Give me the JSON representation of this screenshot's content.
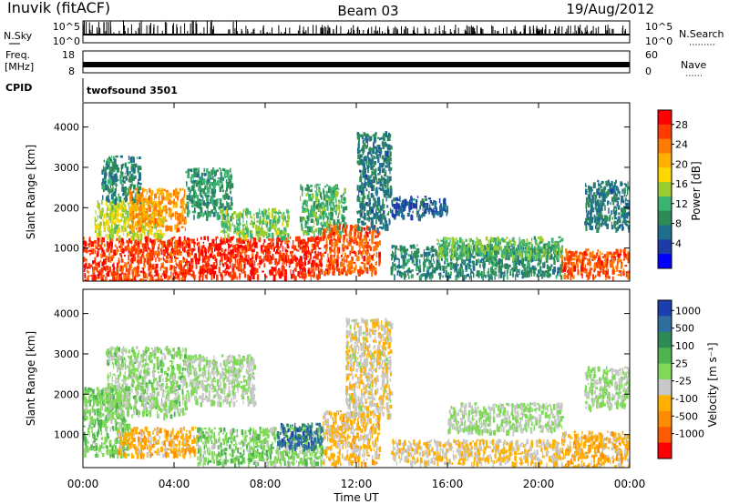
{
  "header": {
    "station": "Inuvik (fitACF)",
    "beam": "Beam 03",
    "date": "19/Aug/2012"
  },
  "top_panels": {
    "nsky_label": "N.Sky",
    "nsky_ticks": [
      "10^5",
      "10^0"
    ],
    "nsearch_label": "N.Search",
    "nsearch_ticks": [
      "10^5",
      "10^0"
    ],
    "freq_label_1": "Freq.",
    "freq_label_2": "[MHz]",
    "freq_ticks": [
      "18",
      "8"
    ],
    "nave_label": "Nave",
    "nave_ticks": [
      "60",
      "0"
    ],
    "cpid_label": "CPID",
    "cpid_value": "twofsound 3501"
  },
  "axes": {
    "ylabel": "Slant Range [km]",
    "yticks": [
      "4000",
      "3000",
      "2000",
      "1000"
    ],
    "xlabel": "Time UT",
    "xticks": [
      "00:00",
      "04:00",
      "08:00",
      "12:00",
      "16:00",
      "20:00",
      "00:00"
    ]
  },
  "colorbars": {
    "power": {
      "label": "Power [dB]",
      "ticks": [
        "28",
        "24",
        "20",
        "16",
        "12",
        "8",
        "4"
      ],
      "colors": [
        "#ff0000",
        "#ff3b00",
        "#ff7a00",
        "#ffb000",
        "#ffd700",
        "#9acd32",
        "#3cb371",
        "#2e8b57",
        "#1f6e8c",
        "#1e3ca8",
        "#0000ff"
      ]
    },
    "velocity": {
      "label": "Velocity [m s⁻¹]",
      "ticks": [
        "1000",
        "500",
        "100",
        "25",
        "-25",
        "-100",
        "-500",
        "-1000"
      ],
      "colors": [
        "#1c3fb0",
        "#2e6fa0",
        "#2e8b57",
        "#4fb34f",
        "#7ed957",
        "#c8c8c8",
        "#ffb000",
        "#ff8c00",
        "#ff5a00",
        "#ff0000"
      ]
    }
  },
  "chart_data": [
    {
      "type": "heatmap",
      "name": "power",
      "title": "",
      "xlabel": "Time UT",
      "ylabel": "Slant Range [km]",
      "xlim": [
        0,
        24
      ],
      "ylim": [
        180,
        4600
      ],
      "colorbar_label": "Power [dB]",
      "colorbar_range": [
        0,
        30
      ],
      "blobs": [
        {
          "t0": 0.0,
          "t1": 4.5,
          "r0": 180,
          "r1": 1300,
          "v": 26
        },
        {
          "t0": 0.5,
          "t1": 3.5,
          "r0": 1300,
          "r1": 2200,
          "v": 16
        },
        {
          "t0": 0.8,
          "t1": 2.5,
          "r0": 2200,
          "r1": 3300,
          "v": 9
        },
        {
          "t0": 2.0,
          "t1": 4.5,
          "r0": 1500,
          "r1": 2500,
          "v": 22
        },
        {
          "t0": 4.5,
          "t1": 6.5,
          "r0": 1800,
          "r1": 3000,
          "v": 10
        },
        {
          "t0": 4.5,
          "t1": 10.5,
          "r0": 300,
          "r1": 1300,
          "v": 27
        },
        {
          "t0": 6.0,
          "t1": 9.0,
          "r0": 1300,
          "r1": 2000,
          "v": 14
        },
        {
          "t0": 9.5,
          "t1": 11.5,
          "r0": 1400,
          "r1": 2600,
          "v": 12
        },
        {
          "t0": 10.5,
          "t1": 13.0,
          "r0": 400,
          "r1": 1600,
          "v": 25
        },
        {
          "t0": 12.0,
          "t1": 13.5,
          "r0": 1500,
          "r1": 3900,
          "v": 8
        },
        {
          "t0": 13.5,
          "t1": 16.0,
          "r0": 1800,
          "r1": 2300,
          "v": 6
        },
        {
          "t0": 13.5,
          "t1": 21.0,
          "r0": 300,
          "r1": 1100,
          "v": 9
        },
        {
          "t0": 15.5,
          "t1": 21.0,
          "r0": 800,
          "r1": 1300,
          "v": 13
        },
        {
          "t0": 21.0,
          "t1": 24.0,
          "r0": 300,
          "r1": 1000,
          "v": 25
        },
        {
          "t0": 22.0,
          "t1": 24.0,
          "r0": 1500,
          "r1": 2700,
          "v": 8
        }
      ]
    },
    {
      "type": "heatmap",
      "name": "velocity",
      "title": "",
      "xlabel": "Time UT",
      "ylabel": "Slant Range [km]",
      "xlim": [
        0,
        24
      ],
      "ylim": [
        180,
        4600
      ],
      "colorbar_label": "Velocity [m s⁻¹]",
      "colorbar_range": [
        -1000,
        1000
      ],
      "blobs": [
        {
          "t0": 0.0,
          "t1": 2.0,
          "r0": 500,
          "r1": 2200,
          "v": 150
        },
        {
          "t0": 1.5,
          "t1": 5.0,
          "r0": 500,
          "r1": 1200,
          "v": -300
        },
        {
          "t0": 1.0,
          "t1": 4.5,
          "r0": 1500,
          "r1": 3200,
          "v": 60
        },
        {
          "t0": 4.5,
          "t1": 7.5,
          "r0": 1800,
          "r1": 3000,
          "v": 0
        },
        {
          "t0": 5.0,
          "t1": 10.5,
          "r0": 300,
          "r1": 1200,
          "v": 120
        },
        {
          "t0": 8.5,
          "t1": 10.5,
          "r0": 700,
          "r1": 1300,
          "v": 700
        },
        {
          "t0": 10.5,
          "t1": 13.0,
          "r0": 300,
          "r1": 1600,
          "v": -250
        },
        {
          "t0": 11.5,
          "t1": 13.5,
          "r0": 1500,
          "r1": 3900,
          "v": -150
        },
        {
          "t0": 13.5,
          "t1": 21.0,
          "r0": 300,
          "r1": 900,
          "v": -200
        },
        {
          "t0": 16.0,
          "t1": 21.0,
          "r0": 1100,
          "r1": 1800,
          "v": 0
        },
        {
          "t0": 21.0,
          "t1": 24.0,
          "r0": 200,
          "r1": 1100,
          "v": -300
        },
        {
          "t0": 22.0,
          "t1": 24.0,
          "r0": 1700,
          "r1": 2700,
          "v": 20
        }
      ]
    }
  ]
}
